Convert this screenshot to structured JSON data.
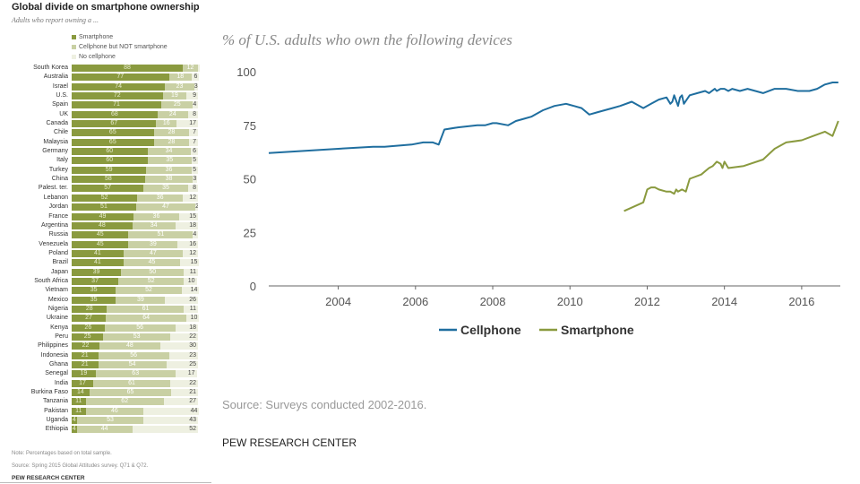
{
  "left_panel": {
    "title": "Global divide on smartphone ownership",
    "subtitle": "Adults who report owning a ...",
    "note": "Note: Percentages based on total sample.",
    "source": "Source: Spring 2015 Global Attitudes survey. Q71 & Q72.",
    "org": "PEW RESEARCH CENTER"
  },
  "right_panel": {
    "source": "Source: Surveys conducted 2002-2016.",
    "org": "PEW RESEARCH CENTER"
  },
  "chart_data": [
    {
      "type": "bar",
      "stacked": true,
      "orientation": "horizontal",
      "title": "Global divide on smartphone ownership",
      "subtitle": "Adults who report owning a ...",
      "legend": [
        "Smartphone",
        "Cellphone but NOT smartphone",
        "No cellphone"
      ],
      "legend_position": "top",
      "colors": [
        "#8a9a3f",
        "#c9d0a4",
        "#eef0e1"
      ],
      "categories": [
        "South Korea",
        "Australia",
        "Israel",
        "U.S.",
        "Spain",
        "UK",
        "Canada",
        "Chile",
        "Malaysia",
        "Germany",
        "Italy",
        "Turkey",
        "China",
        "Palest. ter.",
        "Lebanon",
        "Jordan",
        "France",
        "Argentina",
        "Russia",
        "Venezuela",
        "Poland",
        "Brazil",
        "Japan",
        "South Africa",
        "Vietnam",
        "Mexico",
        "Nigeria",
        "Ukraine",
        "Kenya",
        "Peru",
        "Philippines",
        "Indonesia",
        "Ghana",
        "Senegal",
        "India",
        "Burkina Faso",
        "Tanzania",
        "Pakistan",
        "Uganda",
        "Ethiopia"
      ],
      "series": [
        {
          "name": "Smartphone",
          "values": [
            88,
            77,
            74,
            72,
            71,
            68,
            67,
            65,
            65,
            60,
            60,
            59,
            58,
            57,
            52,
            51,
            49,
            48,
            45,
            45,
            41,
            41,
            39,
            37,
            35,
            35,
            28,
            27,
            26,
            25,
            22,
            21,
            21,
            19,
            17,
            14,
            11,
            11,
            4,
            4
          ]
        },
        {
          "name": "Cellphone but NOT smartphone",
          "values": [
            12,
            18,
            23,
            19,
            25,
            24,
            16,
            28,
            28,
            34,
            35,
            36,
            38,
            35,
            36,
            47,
            36,
            34,
            51,
            39,
            47,
            45,
            50,
            52,
            52,
            39,
            61,
            64,
            56,
            53,
            48,
            56,
            54,
            63,
            61,
            65,
            62,
            46,
            53,
            44
          ]
        },
        {
          "name": "No cellphone",
          "values": [
            0,
            6,
            3,
            9,
            4,
            8,
            17,
            7,
            7,
            6,
            5,
            5,
            3,
            8,
            12,
            2,
            15,
            18,
            4,
            16,
            12,
            15,
            11,
            10,
            14,
            26,
            11,
            10,
            18,
            22,
            30,
            23,
            25,
            17,
            22,
            21,
            27,
            44,
            43,
            52
          ]
        }
      ]
    },
    {
      "type": "line",
      "title": "% of U.S. adults who own the following devices",
      "x_ticks": [
        "2004",
        "2006",
        "2008",
        "2010",
        "2012",
        "2014",
        "2016"
      ],
      "y_ticks": [
        "0",
        "25",
        "50",
        "75",
        "100"
      ],
      "xlim": [
        2002.2,
        2017
      ],
      "ylim": [
        0,
        100
      ],
      "grid": false,
      "legend_position": "bottom",
      "series": [
        {
          "name": "Cellphone",
          "color": "#1f6e9f",
          "x": [
            2002.2,
            2004.0,
            2004.9,
            2005.2,
            2005.9,
            2006.2,
            2006.45,
            2006.6,
            2006.75,
            2007.1,
            2007.6,
            2007.8,
            2008.0,
            2008.1,
            2008.4,
            2008.6,
            2008.8,
            2009.0,
            2009.3,
            2009.6,
            2009.9,
            2010.1,
            2010.3,
            2010.5,
            2010.7,
            2010.9,
            2011.1,
            2011.3,
            2011.6,
            2011.9,
            2012.1,
            2012.3,
            2012.5,
            2012.6,
            2012.65,
            2012.7,
            2012.8,
            2012.85,
            2012.9,
            2012.95,
            2013.1,
            2013.3,
            2013.5,
            2013.6,
            2013.75,
            2013.8,
            2013.9,
            2014.0,
            2014.1,
            2014.2,
            2014.4,
            2014.6,
            2014.8,
            2015.0,
            2015.3,
            2015.6,
            2015.9,
            2016.2,
            2016.4,
            2016.6,
            2016.8,
            2016.95
          ],
          "y": [
            62,
            64,
            65,
            65,
            66,
            67,
            67,
            66,
            73,
            74,
            75,
            75,
            76,
            76,
            75,
            77,
            78,
            79,
            82,
            84,
            85,
            84,
            83,
            80,
            81,
            82,
            83,
            84,
            86,
            83,
            85,
            87,
            88,
            85,
            86,
            89,
            84,
            88,
            89,
            85,
            89,
            90,
            91,
            90,
            92,
            91,
            92,
            92,
            91,
            92,
            91,
            92,
            91,
            90,
            92,
            92,
            91,
            91,
            92,
            94,
            95,
            95
          ]
        },
        {
          "name": "Smartphone",
          "color": "#8a9a3f",
          "x": [
            2011.4,
            2011.9,
            2012.0,
            2012.1,
            2012.2,
            2012.3,
            2012.5,
            2012.6,
            2012.7,
            2012.75,
            2012.8,
            2012.9,
            2013.0,
            2013.1,
            2013.4,
            2013.6,
            2013.7,
            2013.8,
            2013.9,
            2013.95,
            2014.0,
            2014.1,
            2014.5,
            2015.0,
            2015.3,
            2015.6,
            2016.0,
            2016.3,
            2016.6,
            2016.8,
            2016.95
          ],
          "y": [
            35,
            39,
            45,
            46,
            46,
            45,
            44,
            44,
            43,
            45,
            44,
            45,
            44,
            50,
            52,
            55,
            56,
            58,
            57,
            55,
            58,
            55,
            56,
            59,
            64,
            67,
            68,
            70,
            72,
            70,
            77
          ]
        }
      ]
    }
  ]
}
